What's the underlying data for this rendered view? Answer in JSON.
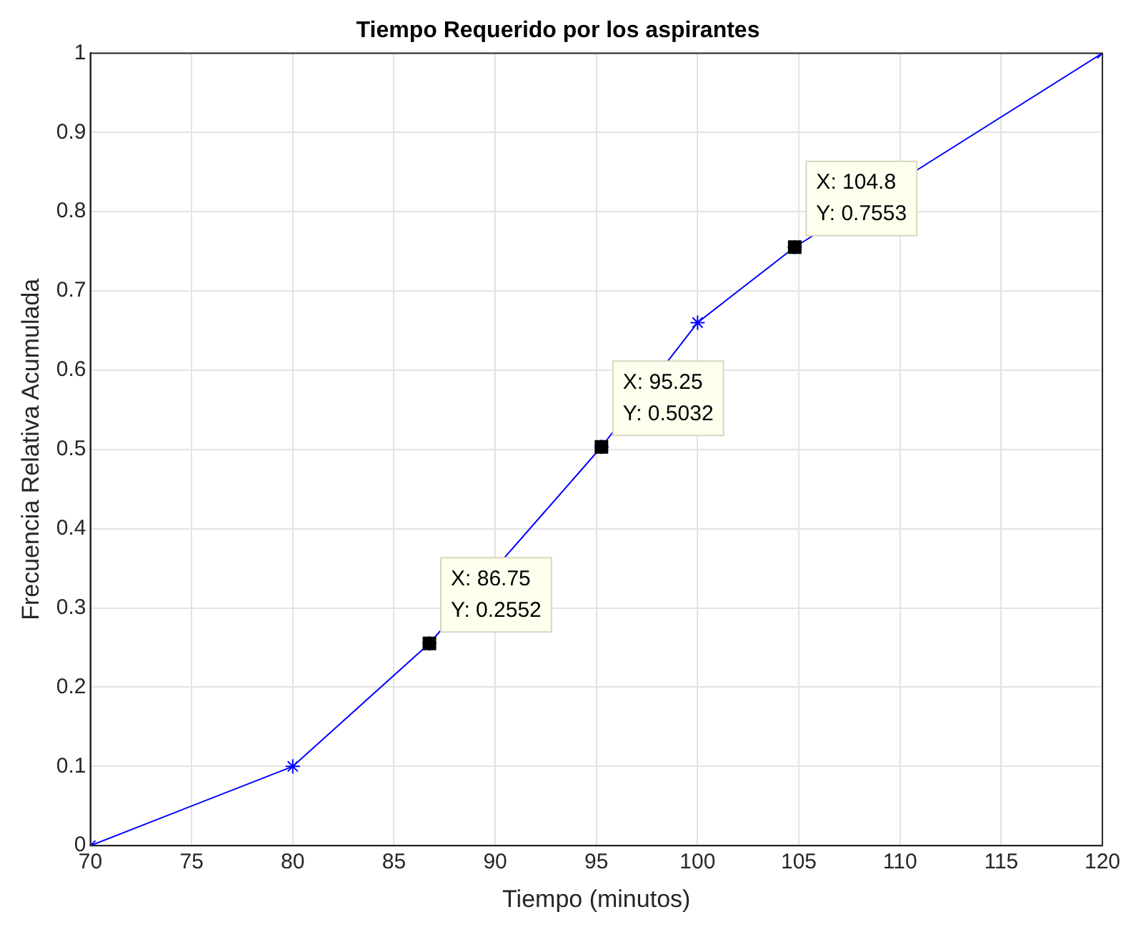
{
  "chart_data": {
    "type": "line",
    "title": "Tiempo Requerido por los aspirantes",
    "xlabel": "Tiempo (minutos)",
    "ylabel": "Frecuencia Relativa Acumulada",
    "series": [
      {
        "type": "line",
        "color": "#0000ff",
        "marker": "cross",
        "x": [
          70,
          80,
          86.75,
          95.25,
          100,
          104.8,
          120
        ],
        "values": [
          0,
          0.1,
          0.2552,
          0.5032,
          0.66,
          0.7553,
          1
        ]
      },
      {
        "type": "scatter",
        "color": "#000000",
        "marker": "square",
        "x": [
          86.75,
          95.25,
          104.8
        ],
        "values": [
          0.2552,
          0.5032,
          0.7553
        ]
      }
    ],
    "annotations": [
      {
        "text": "X: 86.75\nY: 0.2552",
        "x": 86.75,
        "y": 0.2552
      },
      {
        "text": "X: 95.25\nY: 0.5032",
        "x": 95.25,
        "y": 0.5032
      },
      {
        "text": "X: 104.8\nY: 0.7553",
        "x": 104.8,
        "y": 0.7553
      }
    ],
    "xlim": [
      70,
      120
    ],
    "xticks": [
      70,
      75,
      80,
      85,
      90,
      95,
      100,
      105,
      110,
      115,
      120
    ],
    "ylim": [
      0,
      1
    ],
    "yticks": [
      0,
      0.1,
      0.2,
      0.3,
      0.4,
      0.5,
      0.6,
      0.7,
      0.8,
      0.9,
      1
    ],
    "grid": true
  }
}
